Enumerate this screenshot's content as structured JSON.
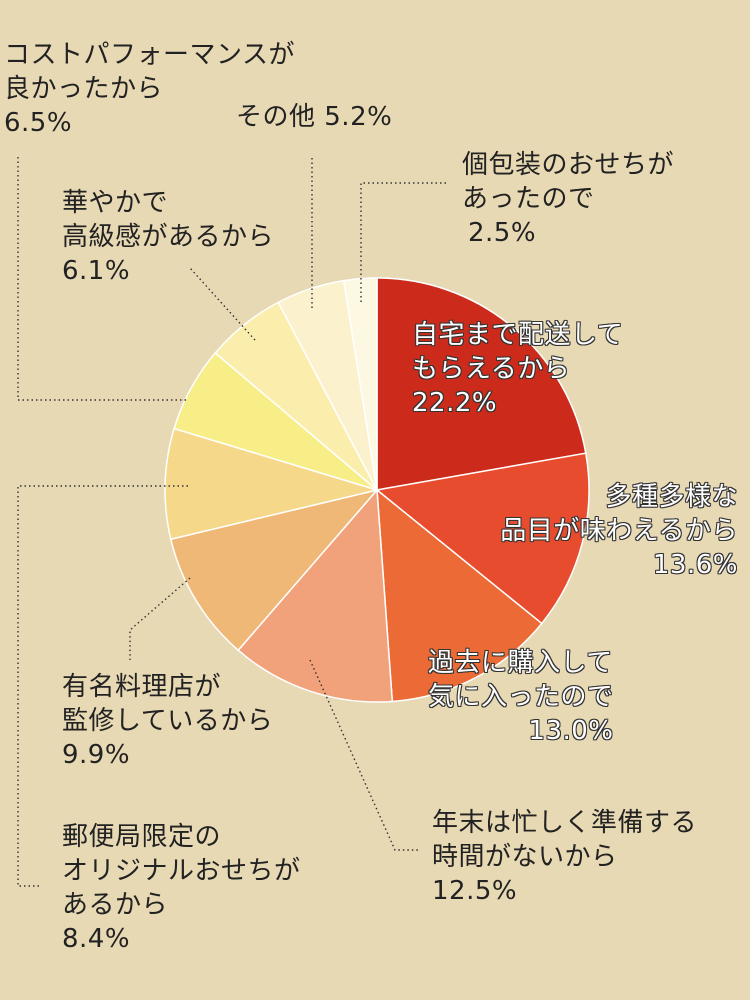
{
  "chart_data": {
    "type": "pie",
    "title": "",
    "slices": [
      {
        "lines": [
          "自宅まで配送して",
          "もらえるから"
        ],
        "value_label": "22.2%",
        "value": 22.2,
        "color": "#cc2a1a"
      },
      {
        "lines": [
          "多種多様な",
          "品目が味わえるから"
        ],
        "value_label": "13.6%",
        "value": 13.6,
        "color": "#e84c2f"
      },
      {
        "lines": [
          "過去に購入して",
          "気に入ったので"
        ],
        "value_label": "13.0%",
        "value": 13.0,
        "color": "#ec6a35"
      },
      {
        "lines": [
          "年末は忙しく準備する",
          "時間がないから"
        ],
        "value_label": "12.5%",
        "value": 12.5,
        "color": "#f2a27a"
      },
      {
        "lines": [
          "有名料理店が",
          "監修しているから"
        ],
        "value_label": "9.9%",
        "value": 9.9,
        "color": "#f0b876"
      },
      {
        "lines": [
          "郵便局限定の",
          "オリジナルおせちが",
          "あるから"
        ],
        "value_label": "8.4%",
        "value": 8.4,
        "color": "#f5d88a"
      },
      {
        "lines": [
          "コストパフォーマンスが",
          "良かったから"
        ],
        "value_label": "6.5%",
        "value": 6.5,
        "color": "#f8ee88"
      },
      {
        "lines": [
          "華やかで",
          "高級感があるから"
        ],
        "value_label": "6.1%",
        "value": 6.1,
        "color": "#fbeead"
      },
      {
        "lines": [
          "その他"
        ],
        "value_label": "5.2%",
        "value": 5.2,
        "color": "#fbf1cc"
      },
      {
        "lines": [
          "個包装のおせちが",
          "あったので"
        ],
        "value_label": "2.5%",
        "value": 2.5,
        "color": "#fdf8e2"
      }
    ]
  }
}
